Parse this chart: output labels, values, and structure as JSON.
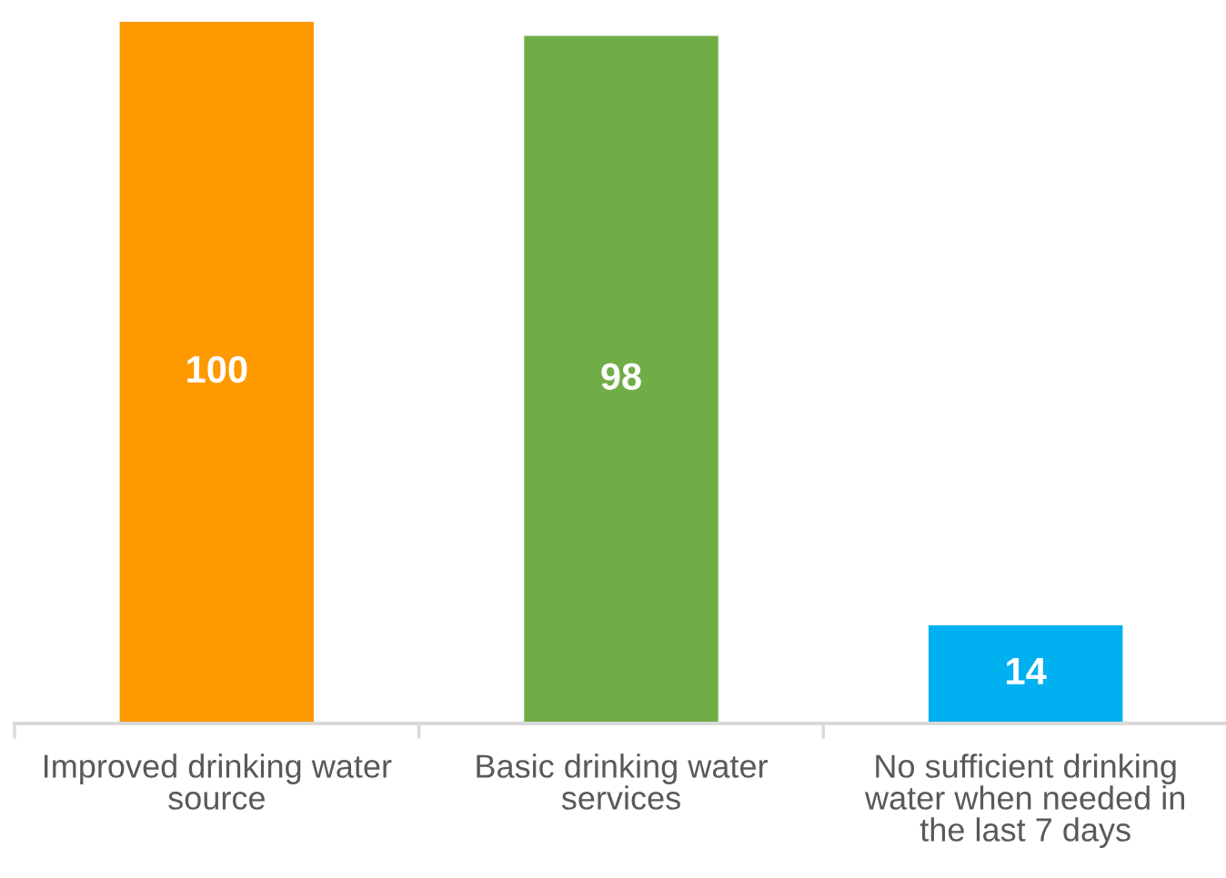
{
  "chart_data": {
    "type": "bar",
    "categories": [
      "Improved drinking water\nsource",
      "Basic drinking water\nservices",
      "No sufficient drinking\nwater when needed in\nthe last 7 days"
    ],
    "values": [
      100,
      98,
      14
    ],
    "colors": [
      "#ff9900",
      "#70ad47",
      "#00b0f0"
    ],
    "data_labels": true,
    "grid": false,
    "legend": false
  }
}
